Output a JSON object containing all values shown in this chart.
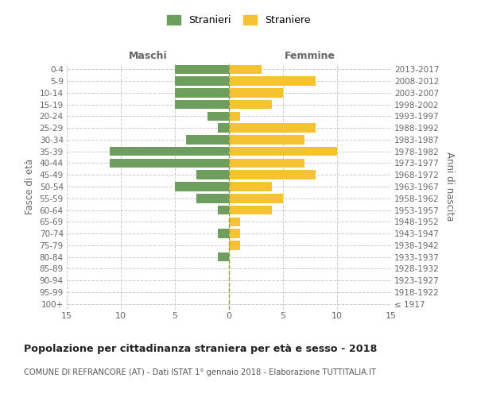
{
  "age_groups": [
    "100+",
    "95-99",
    "90-94",
    "85-89",
    "80-84",
    "75-79",
    "70-74",
    "65-69",
    "60-64",
    "55-59",
    "50-54",
    "45-49",
    "40-44",
    "35-39",
    "30-34",
    "25-29",
    "20-24",
    "15-19",
    "10-14",
    "5-9",
    "0-4"
  ],
  "birth_years": [
    "≤ 1917",
    "1918-1922",
    "1923-1927",
    "1928-1932",
    "1933-1937",
    "1938-1942",
    "1943-1947",
    "1948-1952",
    "1953-1957",
    "1958-1962",
    "1963-1967",
    "1968-1972",
    "1973-1977",
    "1978-1982",
    "1983-1987",
    "1988-1992",
    "1993-1997",
    "1998-2002",
    "2003-2007",
    "2008-2012",
    "2013-2017"
  ],
  "males": [
    0,
    0,
    0,
    0,
    1,
    0,
    1,
    0,
    1,
    3,
    5,
    3,
    11,
    11,
    4,
    1,
    2,
    5,
    5,
    5,
    5
  ],
  "females": [
    0,
    0,
    0,
    0,
    0,
    1,
    1,
    1,
    4,
    5,
    4,
    8,
    7,
    10,
    7,
    8,
    1,
    4,
    5,
    8,
    3
  ],
  "male_color": "#6e9e5e",
  "female_color": "#f5c232",
  "grid_color": "#cccccc",
  "text_color": "#666666",
  "center_line_color": "#999944",
  "title": "Popolazione per cittadinanza straniera per età e sesso - 2018",
  "subtitle": "COMUNE DI REFRANCORE (AT) - Dati ISTAT 1° gennaio 2018 - Elaborazione TUTTITALIA.IT",
  "maschi_label": "Maschi",
  "femmine_label": "Femmine",
  "ylabel_left": "Fasce di età",
  "ylabel_right": "Anni di nascita",
  "xlim": 15,
  "xticks": [
    -15,
    -10,
    -5,
    0,
    5,
    10,
    15
  ],
  "xtick_labels": [
    "15",
    "10",
    "5",
    "0",
    "5",
    "10",
    "15"
  ],
  "legend_stranieri": "Stranieri",
  "legend_straniere": "Straniere"
}
